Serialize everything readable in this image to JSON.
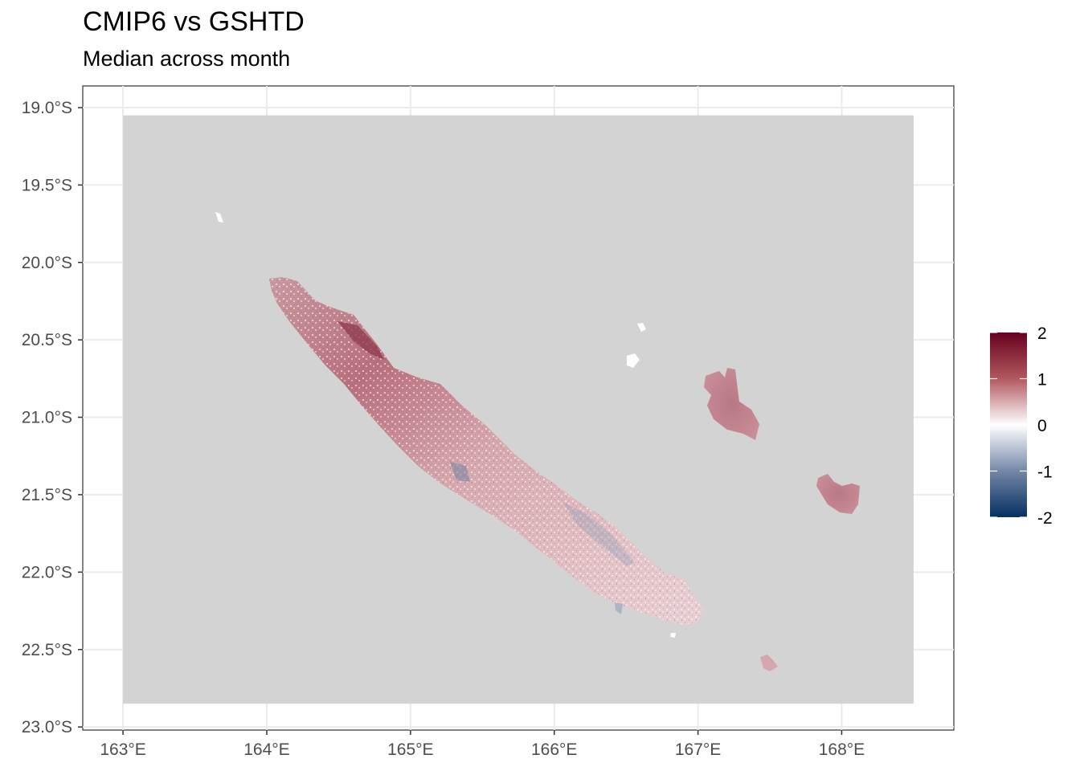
{
  "title": "CMIP6 vs GSHTD",
  "subtitle": "Median across month",
  "map": {
    "x_axis": {
      "range": [
        162.72,
        168.78
      ],
      "ticks": [
        163,
        164,
        165,
        166,
        167,
        168
      ],
      "tick_labels": [
        "163°E",
        "164°E",
        "165°E",
        "166°E",
        "167°E",
        "168°E"
      ]
    },
    "y_axis": {
      "range": [
        -23.02,
        -18.86
      ],
      "ticks": [
        -19.0,
        -19.5,
        -20.0,
        -20.5,
        -21.0,
        -21.5,
        -22.0,
        -22.5,
        -23.0
      ],
      "tick_labels": [
        "19.0°S",
        "19.5°S",
        "20.0°S",
        "20.5°S",
        "21.0°S",
        "21.5°S",
        "22.0°S",
        "22.5°S",
        "23.0°S"
      ]
    },
    "data_extent": {
      "lon": [
        163.0,
        168.5
      ],
      "lat": [
        -22.85,
        -19.05
      ]
    },
    "ocean_color": "#D3D3D3",
    "grid": true
  },
  "legend": {
    "position": "right",
    "scale": "diverging",
    "range": [
      -2,
      2
    ],
    "breaks": [
      "2",
      "1",
      "0",
      "-1",
      "-2"
    ],
    "colors": {
      "high": "#67001F",
      "mid": "#FFFFFF",
      "low": "#053061"
    }
  }
}
